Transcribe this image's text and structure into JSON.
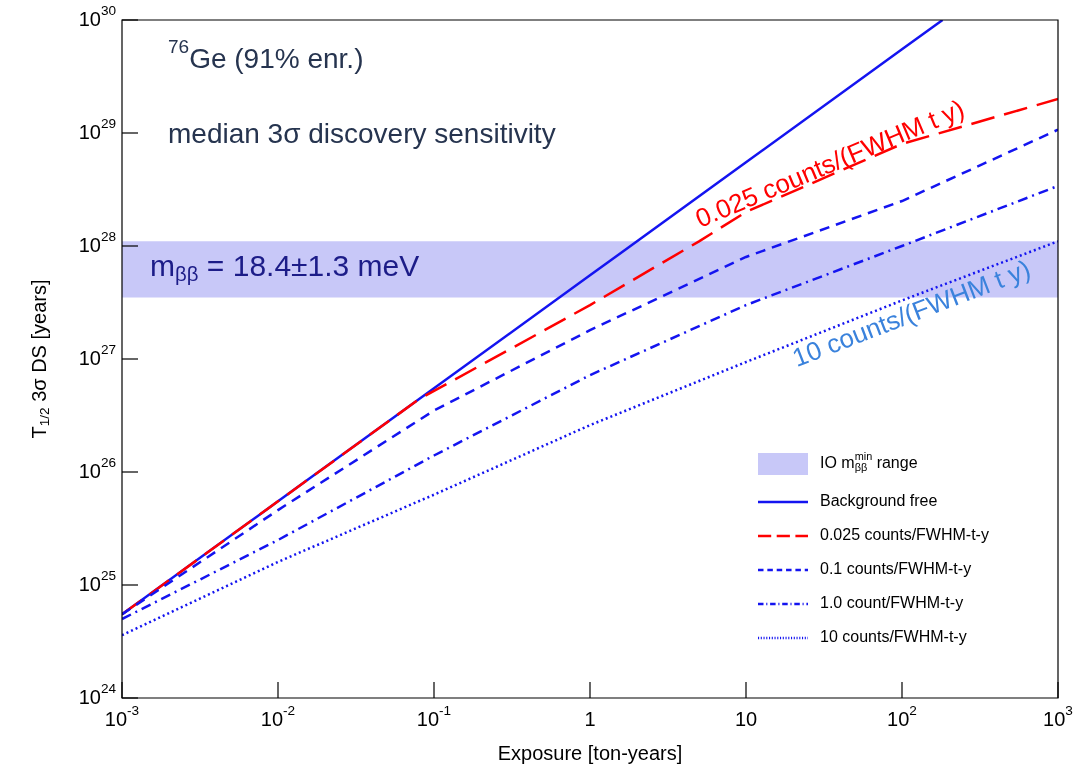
{
  "chart_data": {
    "type": "line",
    "xlabel": "Exposure [ton-years]",
    "ylabel": "T$_{1/2}$ 3σ DS [years]",
    "log": "xy",
    "xlim": [
      0.001,
      1000
    ],
    "ylim": [
      1e+24,
      1e+30
    ],
    "xticks": [
      {
        "value": 0.001,
        "label": "10$^{-3}$"
      },
      {
        "value": 0.01,
        "label": "10$^{-2}$"
      },
      {
        "value": 0.1,
        "label": "10$^{-1}$"
      },
      1,
      10,
      {
        "value": 100,
        "label": "10$^{2}$"
      },
      {
        "value": 1000,
        "label": "10$^{3}$"
      }
    ],
    "yticks": [
      {
        "value": 1e+24,
        "label": "10$^{24}$"
      },
      {
        "value": 1e+25,
        "label": "10$^{25}$"
      },
      {
        "value": 1e+26,
        "label": "10$^{26}$"
      },
      {
        "value": 1e+27,
        "label": "10$^{27}$"
      },
      {
        "value": 1e+28,
        "label": "10$^{28}$"
      },
      {
        "value": 1e+29,
        "label": "10$^{29}$"
      },
      {
        "value": 1e+30,
        "label": "10$^{30}$"
      }
    ],
    "legend": "bottom right",
    "marker": "none",
    "bands": [
      {
        "axis": "y",
        "from": 3.5e+27,
        "to": 1.1e+28,
        "label": "IO m$^{min}$$_{ββ}$ range",
        "color": "#c8c8f8"
      }
    ],
    "series": [
      {
        "name": "Background free",
        "color": "#1414f0",
        "line_style": "solid",
        "x": [
          0.001,
          0.01,
          0.1,
          1,
          10,
          100,
          182
        ],
        "values": [
          5.5e+24,
          5.5e+25,
          5.5e+26,
          5.5e+27,
          5.5e+28,
          5.5e+29,
          1e+30
        ]
      },
      {
        "name": "0.025 counts/FWHM-t-y",
        "color": "#ff0000",
        "line_style": "longdash",
        "x": [
          0.001,
          0.01,
          0.08,
          0.3,
          1,
          5,
          10,
          100,
          1000
        ],
        "values": [
          5.5e+24,
          5.5e+25,
          4.4e+26,
          1.2e+27,
          3e+27,
          1.1e+28,
          2e+28,
          8e+28,
          2e+29
        ]
      },
      {
        "name": "0.1 counts/FWHM-t-y",
        "color": "#1414f0",
        "line_style": "dashed",
        "x": [
          0.001,
          0.01,
          0.1,
          1,
          10,
          100,
          1000
        ],
        "values": [
          5.5e+24,
          4.6e+25,
          3.5e+26,
          1.8e+27,
          8e+27,
          2.5e+28,
          1.07e+29
        ]
      },
      {
        "name": "1.0 count/FWHM-t-y",
        "color": "#1414f0",
        "line_style": "dashdot",
        "x": [
          0.001,
          0.01,
          0.1,
          1,
          10,
          100,
          1000
        ],
        "values": [
          5e+24,
          2.5e+25,
          1.4e+26,
          7.2e+26,
          3e+27,
          1e+28,
          3.4e+28
        ]
      },
      {
        "name": "10 counts/FWHM-t-y",
        "color": "#1414f0",
        "line_style": "dotted",
        "x": [
          0.001,
          0.01,
          0.1,
          1,
          10,
          100,
          1000
        ],
        "values": [
          3.6e+24,
          1.6e+25,
          6.3e+25,
          2.6e+26,
          9.4e+26,
          3.3e+27,
          1.1e+28
        ]
      }
    ],
    "annotations": [
      "$^{76}$Ge (91% enr.)",
      "median 3σ discovery sensitivity",
      "m$_{ββ}$ = 18.4±1.3 meV",
      "0.025 counts/(FWHM t y)",
      "10 counts/(FWHM t y)"
    ]
  }
}
